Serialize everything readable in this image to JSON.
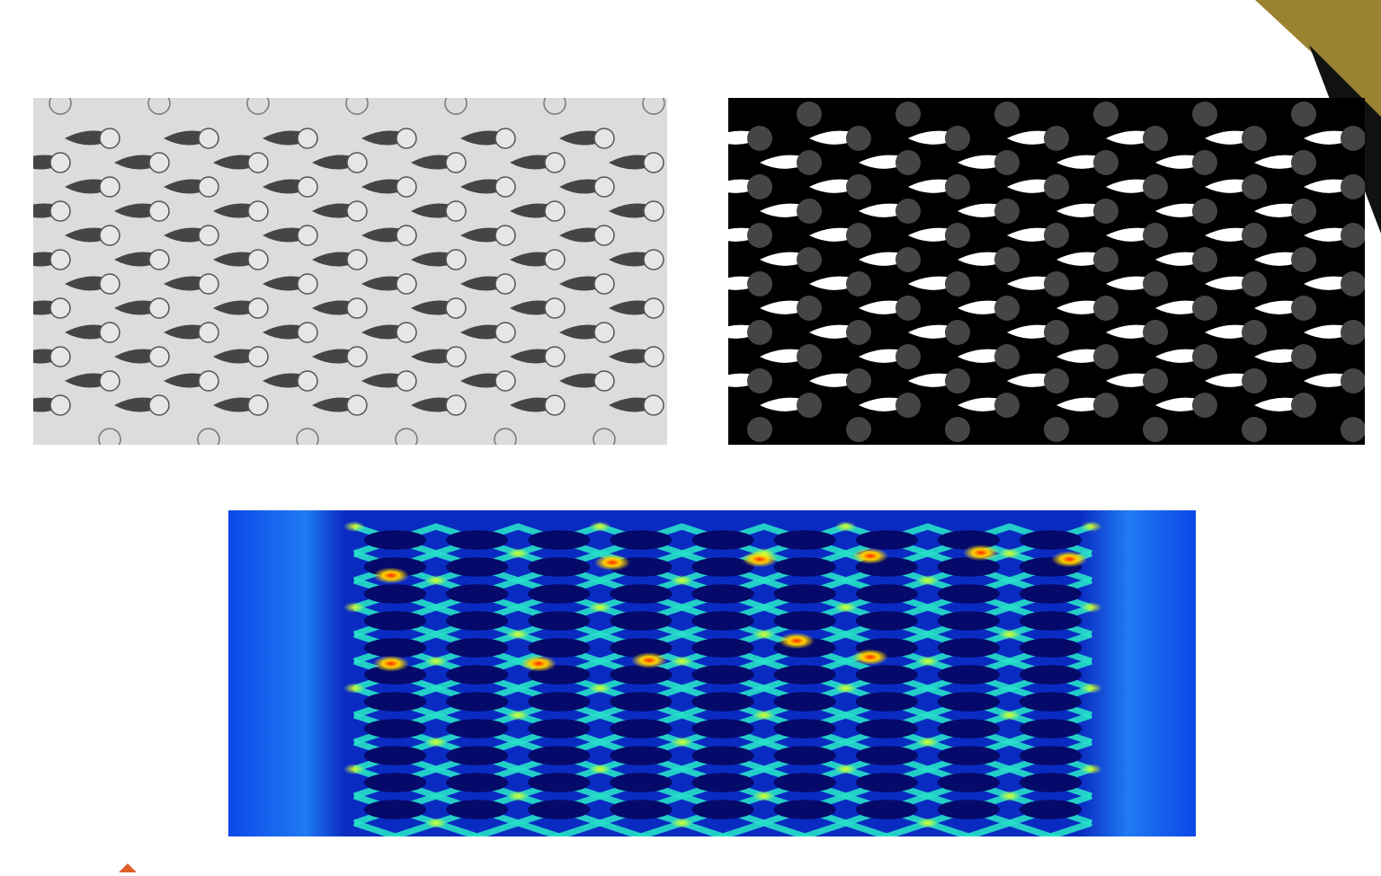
{
  "panels": [
    {
      "id": "photo",
      "kind": "grayscale-experiment-photo"
    },
    {
      "id": "binary",
      "kind": "binarized-image"
    },
    {
      "id": "field",
      "kind": "jet-colormap-field"
    }
  ],
  "colors": {
    "accent_gold": "#9a8230",
    "accent_dark": "#1a1a1a",
    "logo_orange": "#e0602a"
  },
  "pattern": {
    "rows": 7,
    "cols": 7
  }
}
